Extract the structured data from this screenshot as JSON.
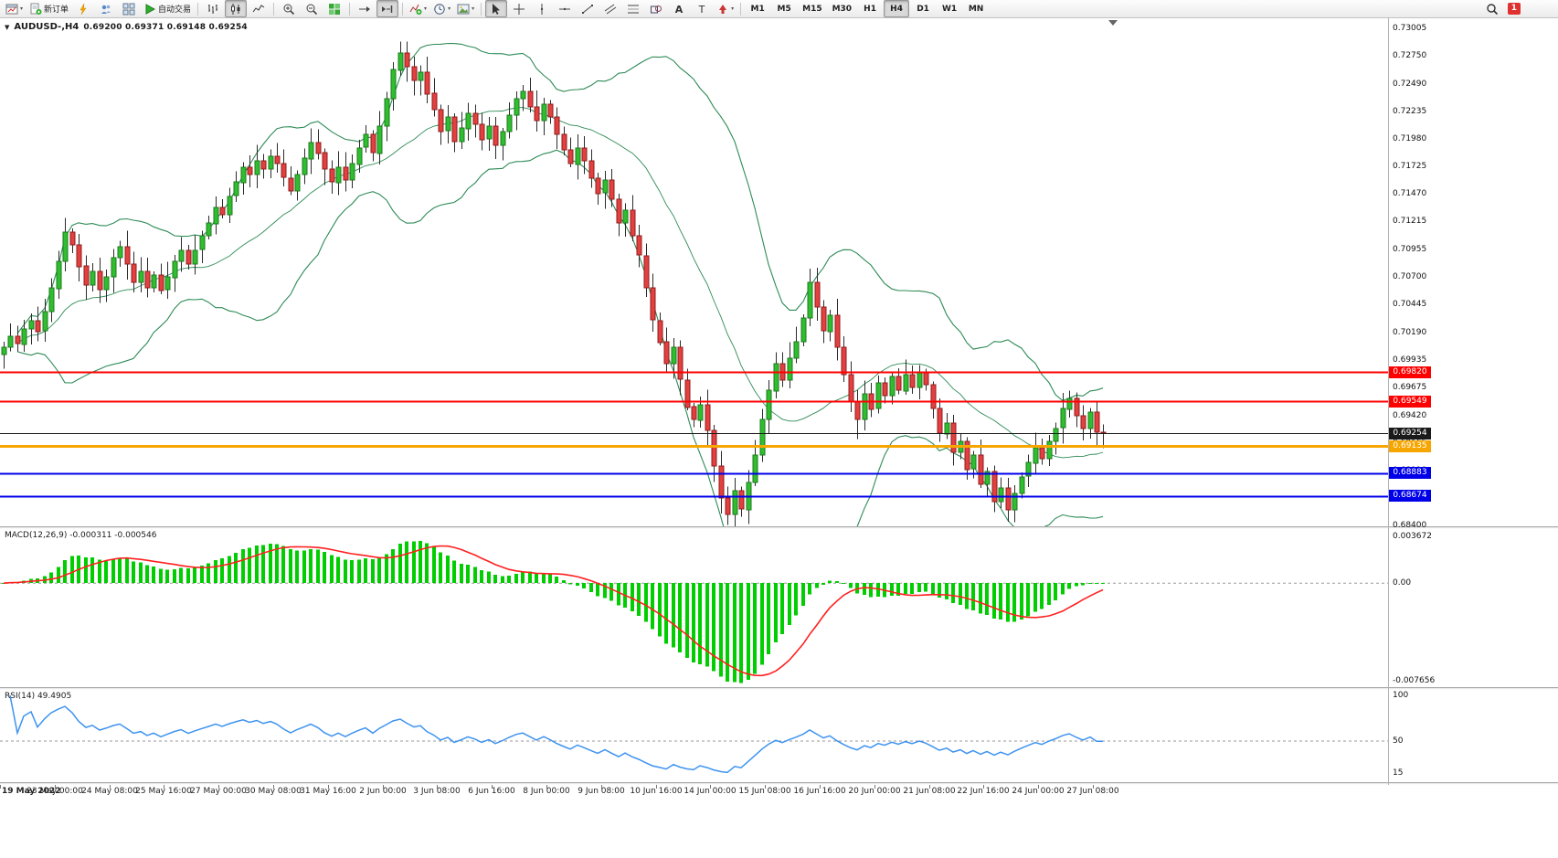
{
  "toolbar": {
    "groups": [
      {
        "name": "standard",
        "items": [
          {
            "name": "new-chart-button",
            "icon": "chart-window",
            "caret": true
          },
          {
            "name": "new-order-button",
            "icon": "doc-plus",
            "label": "新订单"
          },
          {
            "name": "market-watch-button",
            "icon": "lightning"
          },
          {
            "name": "accounts-button",
            "icon": "people"
          },
          {
            "name": "charts-tile-button",
            "icon": "chart-grid"
          },
          {
            "name": "auto-trading-button",
            "icon": "play",
            "label": "自动交易"
          }
        ]
      },
      {
        "name": "chart-type",
        "items": [
          {
            "name": "bar-chart-button",
            "icon": "bars-chart"
          },
          {
            "name": "candle-chart-button",
            "icon": "candles-chart",
            "active": true
          },
          {
            "name": "line-chart-button",
            "icon": "line-chart"
          }
        ]
      },
      {
        "name": "zoom",
        "items": [
          {
            "name": "zoom-in-button",
            "icon": "zoom-in"
          },
          {
            "name": "zoom-out-button",
            "icon": "zoom-out"
          },
          {
            "name": "tile-windows-button",
            "icon": "tile-windows"
          }
        ]
      },
      {
        "name": "scroll",
        "items": [
          {
            "name": "auto-scroll-button",
            "icon": "auto-scroll"
          },
          {
            "name": "chart-shift-button",
            "icon": "chart-shift",
            "active": true
          }
        ]
      },
      {
        "name": "insert",
        "items": [
          {
            "name": "indicators-button",
            "icon": "indicator-plus",
            "caret": true
          },
          {
            "name": "periods-button",
            "icon": "clock",
            "caret": true
          },
          {
            "name": "templates-button",
            "icon": "image",
            "caret": true
          }
        ]
      },
      {
        "name": "objects",
        "items": [
          {
            "name": "cursor-button",
            "icon": "cursor",
            "active": true
          },
          {
            "name": "crosshair-button",
            "icon": "crosshair"
          },
          {
            "name": "vertical-line-button",
            "icon": "vertical-line"
          },
          {
            "name": "horizontal-line-button",
            "icon": "horizontal-line"
          },
          {
            "name": "trendline-button",
            "icon": "trendline"
          },
          {
            "name": "channel-button",
            "icon": "channel"
          },
          {
            "name": "fibonacci-button",
            "icon": "fibonacci"
          },
          {
            "name": "shapes-button",
            "icon": "shapes"
          },
          {
            "name": "text-button",
            "icon": "text-a"
          },
          {
            "name": "label-button",
            "icon": "label-t"
          },
          {
            "name": "arrows-button",
            "icon": "arrows",
            "caret": true
          }
        ]
      },
      {
        "name": "timeframes",
        "items": [
          {
            "name": "timeframe-m1",
            "label": "M1",
            "tf": true
          },
          {
            "name": "timeframe-m5",
            "label": "M5",
            "tf": true
          },
          {
            "name": "timeframe-m15",
            "label": "M15",
            "tf": true
          },
          {
            "name": "timeframe-m30",
            "label": "M30",
            "tf": true
          },
          {
            "name": "timeframe-h1",
            "label": "H1",
            "tf": true
          },
          {
            "name": "timeframe-h4",
            "label": "H4",
            "tf": true,
            "active": true
          },
          {
            "name": "timeframe-d1",
            "label": "D1",
            "tf": true
          },
          {
            "name": "timeframe-w1",
            "label": "W1",
            "tf": true
          },
          {
            "name": "timeframe-mn",
            "label": "MN",
            "tf": true
          }
        ]
      }
    ],
    "right": [
      {
        "name": "search-button",
        "icon": "magnifier"
      },
      {
        "name": "notifications-badge",
        "badge": "1"
      }
    ]
  },
  "chart_data": {
    "type": "candlestick",
    "symbol": "AUDUSD",
    "period": "H4",
    "title_display": "AUDUSD-,H4",
    "ohlc_text": "0.69200 0.69371 0.69148 0.69254",
    "open": "0.69200",
    "high": "0.69371",
    "low": "0.69148",
    "close": "0.69254",
    "candle_up_color": "#2FBE2F",
    "candle_down_color": "#E34040",
    "y_axis": {
      "min": 0.684,
      "max": 0.73005,
      "ticks": [
        "0.73005",
        "0.72750",
        "0.72490",
        "0.72235",
        "0.71980",
        "0.71725",
        "0.71470",
        "0.71215",
        "0.70955",
        "0.70700",
        "0.70445",
        "0.70190",
        "0.69935",
        "0.69675",
        "0.69420",
        "0.69165",
        "0.68910",
        "0.68655",
        "0.68400"
      ]
    },
    "x_axis": {
      "labels": [
        "19 May 2022",
        "23 May 00:00",
        "24 May 08:00",
        "25 May 16:00",
        "27 May 00:00",
        "30 May 08:00",
        "31 May 16:00",
        "2 Jun 00:00",
        "3 Jun 08:00",
        "6 Jun 16:00",
        "8 Jun 00:00",
        "9 Jun 08:00",
        "10 Jun 16:00",
        "14 Jun 00:00",
        "15 Jun 08:00",
        "16 Jun 16:00",
        "20 Jun 00:00",
        "21 Jun 08:00",
        "22 Jun 16:00",
        "24 Jun 00:00",
        "27 Jun 08:00"
      ]
    },
    "first_open": 0.6998,
    "closes": [
      0.7005,
      0.7015,
      0.7008,
      0.7022,
      0.703,
      0.702,
      0.7038,
      0.706,
      0.7085,
      0.7112,
      0.71,
      0.708,
      0.7062,
      0.7075,
      0.7058,
      0.707,
      0.7088,
      0.7098,
      0.7082,
      0.7065,
      0.7075,
      0.706,
      0.7072,
      0.7058,
      0.707,
      0.7085,
      0.7095,
      0.7082,
      0.7095,
      0.7108,
      0.712,
      0.7135,
      0.7128,
      0.7145,
      0.7158,
      0.7172,
      0.7165,
      0.7178,
      0.717,
      0.7182,
      0.7175,
      0.7162,
      0.715,
      0.7165,
      0.718,
      0.7195,
      0.7185,
      0.717,
      0.7158,
      0.7172,
      0.716,
      0.7175,
      0.719,
      0.7202,
      0.7185,
      0.721,
      0.7235,
      0.7262,
      0.7278,
      0.7265,
      0.7252,
      0.726,
      0.724,
      0.7225,
      0.7205,
      0.7218,
      0.7195,
      0.7208,
      0.7222,
      0.7212,
      0.7198,
      0.721,
      0.7192,
      0.7205,
      0.722,
      0.7235,
      0.7242,
      0.7228,
      0.7215,
      0.723,
      0.7218,
      0.7202,
      0.7188,
      0.7175,
      0.719,
      0.7178,
      0.7162,
      0.7148,
      0.716,
      0.7142,
      0.712,
      0.7132,
      0.7108,
      0.709,
      0.706,
      0.703,
      0.701,
      0.699,
      0.7005,
      0.6975,
      0.695,
      0.6938,
      0.6952,
      0.6928,
      0.6895,
      0.6865,
      0.685,
      0.6872,
      0.6855,
      0.688,
      0.6905,
      0.6938,
      0.6965,
      0.699,
      0.6975,
      0.6995,
      0.701,
      0.7032,
      0.7065,
      0.7042,
      0.702,
      0.7035,
      0.7005,
      0.698,
      0.6955,
      0.6938,
      0.6962,
      0.6948,
      0.6972,
      0.696,
      0.6978,
      0.6965,
      0.698,
      0.6968,
      0.6982,
      0.697,
      0.6948,
      0.6925,
      0.6935,
      0.6908,
      0.6918,
      0.6892,
      0.6905,
      0.6878,
      0.689,
      0.6862,
      0.6875,
      0.6855,
      0.687,
      0.6885,
      0.6898,
      0.6912,
      0.6902,
      0.6918,
      0.693,
      0.6948,
      0.6958,
      0.6942,
      0.693,
      0.6945,
      0.6926,
      0.69254
    ],
    "high_overrides": {
      "9": 0.7125,
      "58": 0.7283,
      "118": 0.7072
    },
    "low_overrides": {
      "0": 0.6985,
      "106": 0.6845,
      "125": 0.692,
      "147": 0.6848
    },
    "levels": [
      {
        "label": "0.69820",
        "value": 0.6982,
        "color": "#FF0000",
        "width": 2,
        "role": "resistance-line"
      },
      {
        "label": "0.69549",
        "value": 0.69549,
        "color": "#FF0000",
        "width": 2,
        "role": "resistance-line"
      },
      {
        "label": "0.69254",
        "value": 0.69254,
        "color": "#1A1A1A",
        "width": 1,
        "role": "current-price-line"
      },
      {
        "label": "0.69135",
        "value": 0.69135,
        "color": "#F7A600",
        "width": 3,
        "role": "support-line"
      },
      {
        "label": "0.68883",
        "value": 0.68883,
        "color": "#0000E8",
        "width": 2,
        "role": "support-line"
      },
      {
        "label": "0.68674",
        "value": 0.68674,
        "color": "#0000E8",
        "width": 2,
        "role": "support-line"
      }
    ],
    "bollinger": {
      "period": 20,
      "deviation": 2,
      "color": "#2E8B57"
    },
    "macd": {
      "display": "MACD(12,26,9) -0.000311 -0.000546",
      "params": [
        12,
        26,
        9
      ],
      "main_value": -0.000311,
      "signal_value": -0.000546,
      "axis_ticks": [
        {
          "label": "0.003672",
          "value": 0.003672
        },
        {
          "label": "0.00",
          "value": 0
        },
        {
          "label": "-0.007656",
          "value": -0.007656
        }
      ],
      "histogram_color": "#00CE00",
      "signal_color": "#FF2020"
    },
    "rsi": {
      "display": "RSI(14) 49.4905",
      "period": 14,
      "value": 49.4905,
      "axis_ticks": [
        {
          "label": "100",
          "value": 100
        },
        {
          "label": "50",
          "value": 50
        },
        {
          "label": "15",
          "value": 15
        }
      ],
      "color": "#3E93F0",
      "mid_level": 50
    }
  }
}
